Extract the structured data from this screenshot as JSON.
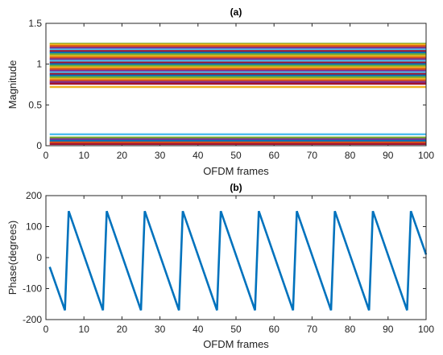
{
  "chart_data": [
    {
      "id": "a",
      "type": "line",
      "title": "(a)",
      "xlabel": "OFDM frames",
      "ylabel": "Magnitude",
      "xlim": [
        0,
        100
      ],
      "ylim": [
        0,
        1.5
      ],
      "xticks": [
        0,
        10,
        20,
        30,
        40,
        50,
        60,
        70,
        80,
        90,
        100
      ],
      "yticks": [
        0,
        0.5,
        1,
        1.5
      ],
      "x_start": 1,
      "x_end": 100,
      "series": [
        {
          "values": [
            1.25
          ],
          "color": "#77AC30"
        },
        {
          "values": [
            1.24
          ],
          "color": "#EDB120"
        },
        {
          "values": [
            1.22
          ],
          "color": "#D95319"
        },
        {
          "values": [
            1.2
          ],
          "color": "#7E2F8E"
        },
        {
          "values": [
            1.18
          ],
          "color": "#4DBEEE"
        },
        {
          "values": [
            1.16
          ],
          "color": "#A2142F"
        },
        {
          "values": [
            1.14
          ],
          "color": "#0072BD"
        },
        {
          "values": [
            1.12
          ],
          "color": "#77AC30"
        },
        {
          "values": [
            1.1
          ],
          "color": "#EDB120"
        },
        {
          "values": [
            1.08
          ],
          "color": "#D95319"
        },
        {
          "values": [
            1.06
          ],
          "color": "#7E2F8E"
        },
        {
          "values": [
            1.04
          ],
          "color": "#4DBEEE"
        },
        {
          "values": [
            1.02
          ],
          "color": "#A2142F"
        },
        {
          "values": [
            1.0
          ],
          "color": "#0072BD"
        },
        {
          "values": [
            0.98
          ],
          "color": "#77AC30"
        },
        {
          "values": [
            0.96
          ],
          "color": "#EDB120"
        },
        {
          "values": [
            0.94
          ],
          "color": "#D95319"
        },
        {
          "values": [
            0.92
          ],
          "color": "#7E2F8E"
        },
        {
          "values": [
            0.9
          ],
          "color": "#4DBEEE"
        },
        {
          "values": [
            0.88
          ],
          "color": "#A2142F"
        },
        {
          "values": [
            0.86
          ],
          "color": "#0072BD"
        },
        {
          "values": [
            0.84
          ],
          "color": "#77AC30"
        },
        {
          "values": [
            0.82
          ],
          "color": "#EDB120"
        },
        {
          "values": [
            0.8
          ],
          "color": "#D95319"
        },
        {
          "values": [
            0.78
          ],
          "color": "#7E2F8E"
        },
        {
          "values": [
            0.76
          ],
          "color": "#A2142F"
        },
        {
          "values": [
            0.72
          ],
          "color": "#EDB120"
        },
        {
          "values": [
            0.14
          ],
          "color": "#4DBEEE"
        },
        {
          "values": [
            0.1
          ],
          "color": "#77AC30"
        },
        {
          "values": [
            0.08
          ],
          "color": "#7E2F8E"
        },
        {
          "values": [
            0.06
          ],
          "color": "#0072BD"
        },
        {
          "values": [
            0.04
          ],
          "color": "#D95319"
        },
        {
          "values": [
            0.02
          ],
          "color": "#A2142F"
        }
      ]
    },
    {
      "id": "b",
      "type": "line",
      "title": "(b)",
      "xlabel": "OFDM frames",
      "ylabel": "Phase(degrees)",
      "xlim": [
        0,
        100
      ],
      "ylim": [
        -200,
        200
      ],
      "xticks": [
        0,
        10,
        20,
        30,
        40,
        50,
        60,
        70,
        80,
        90,
        100
      ],
      "yticks": [
        -200,
        -100,
        0,
        100,
        200
      ],
      "series": [
        {
          "color": "#0072BD",
          "x": [
            1,
            5,
            6,
            15,
            16,
            25,
            26,
            35,
            36,
            45,
            46,
            55,
            56,
            65,
            66,
            75,
            76,
            85,
            86,
            95,
            96,
            100
          ],
          "y": [
            -30,
            -170,
            150,
            -170,
            150,
            -170,
            150,
            -170,
            150,
            -170,
            150,
            -170,
            150,
            -170,
            150,
            -170,
            150,
            -170,
            150,
            -170,
            150,
            10
          ]
        }
      ]
    }
  ]
}
